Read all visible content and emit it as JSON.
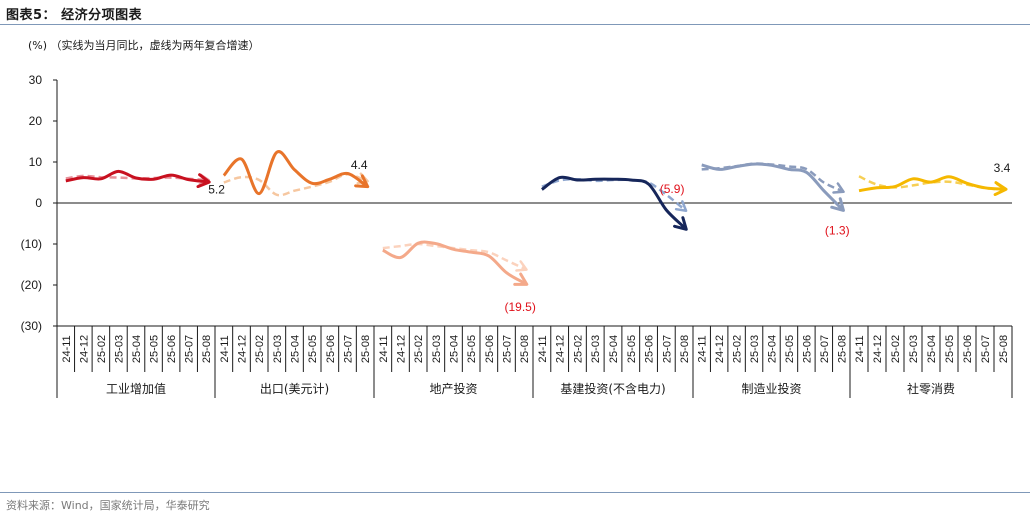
{
  "header": {
    "title": "图表5：  经济分项图表",
    "unit_note": "(%)  （实线为当月同比，虚线为两年复合增速）"
  },
  "footer": {
    "source": "资料来源：Wind，国家统计局，华泰研究"
  },
  "colors": {
    "axis": "#1a1a1a",
    "red_label": "#e0101a",
    "rule": "#7f98b8"
  },
  "chart_data": {
    "type": "line",
    "title": "经济分项图表",
    "ylabel": "(%)",
    "ylim": [
      -30,
      30
    ],
    "yticks": [
      30,
      20,
      10,
      0,
      -10,
      -20,
      -30
    ],
    "ytick_labels": [
      "30",
      "20",
      "10",
      "0",
      "(10)",
      "(20)",
      "(30)"
    ],
    "months": [
      "24-11",
      "24-12",
      "25-02",
      "25-03",
      "25-04",
      "25-05",
      "25-06",
      "25-07",
      "25-08"
    ],
    "groups": [
      {
        "name": "工业增加值",
        "solid_color": "#c8101f",
        "dashed_color": "#e8909a",
        "solid": [
          5.4,
          6.2,
          5.9,
          7.7,
          6.1,
          5.8,
          6.8,
          5.7,
          5.2
        ],
        "dashed": [
          6.0,
          6.6,
          6.3,
          6.2,
          6.0,
          6.1,
          6.2,
          5.9,
          5.6
        ],
        "end_label": "5.2",
        "end_label_color": "#1a1a1a"
      },
      {
        "name": "出口(美元计)",
        "solid_color": "#e8742a",
        "dashed_color": "#f6c7a0",
        "solid": [
          6.7,
          10.7,
          2.3,
          12.4,
          8.1,
          4.8,
          5.8,
          7.2,
          4.4
        ],
        "dashed": [
          5.0,
          6.3,
          5.6,
          2.0,
          3.0,
          4.0,
          5.2,
          7.0,
          5.5
        ],
        "end_label": "4.4",
        "end_label_color": "#1a1a1a"
      },
      {
        "name": "地产投资",
        "solid_color": "#f4a98a",
        "dashed_color": "#fbd2bd",
        "solid": [
          -11.5,
          -13.3,
          -9.8,
          -9.9,
          -11.3,
          -12.0,
          -12.9,
          -17.0,
          -19.5
        ],
        "dashed": [
          -11.0,
          -10.5,
          -10.0,
          -10.5,
          -11.0,
          -11.5,
          -12.0,
          -14.0,
          -16.0
        ],
        "end_label": "(19.5)",
        "end_label_color": "#e0101a"
      },
      {
        "name": "基建投资(不含电力)",
        "solid_color": "#16265a",
        "dashed_color": "#8fa7cf",
        "solid": [
          3.3,
          6.2,
          5.6,
          5.8,
          5.8,
          5.6,
          4.6,
          -1.7,
          -5.9
        ],
        "dashed": [
          4.0,
          5.5,
          5.8,
          5.4,
          5.6,
          5.6,
          5.0,
          2.0,
          -1.5
        ],
        "end_label": "(5.9)",
        "end_label_color": "#e0101a"
      },
      {
        "name": "制造业投资",
        "solid_color": "#8a9bbc",
        "dashed_color": "#8a9bbc",
        "solid": [
          9.3,
          8.2,
          8.9,
          9.5,
          9.2,
          8.2,
          7.5,
          3.0,
          -1.3
        ],
        "dashed": [
          8.2,
          8.5,
          9.0,
          9.6,
          9.4,
          8.9,
          8.3,
          5.0,
          3.0
        ],
        "end_label": "(1.3)",
        "end_label_color": "#e0101a"
      },
      {
        "name": "社零消费",
        "solid_color": "#f5b800",
        "dashed_color": "#f6cf55",
        "solid": [
          3.0,
          3.7,
          4.0,
          5.9,
          5.1,
          6.4,
          4.8,
          3.7,
          3.4
        ],
        "dashed": [
          6.5,
          4.5,
          3.8,
          4.3,
          5.0,
          5.2,
          4.5,
          3.6,
          3.3
        ],
        "end_label": "3.4",
        "end_label_color": "#1a1a1a"
      }
    ]
  }
}
